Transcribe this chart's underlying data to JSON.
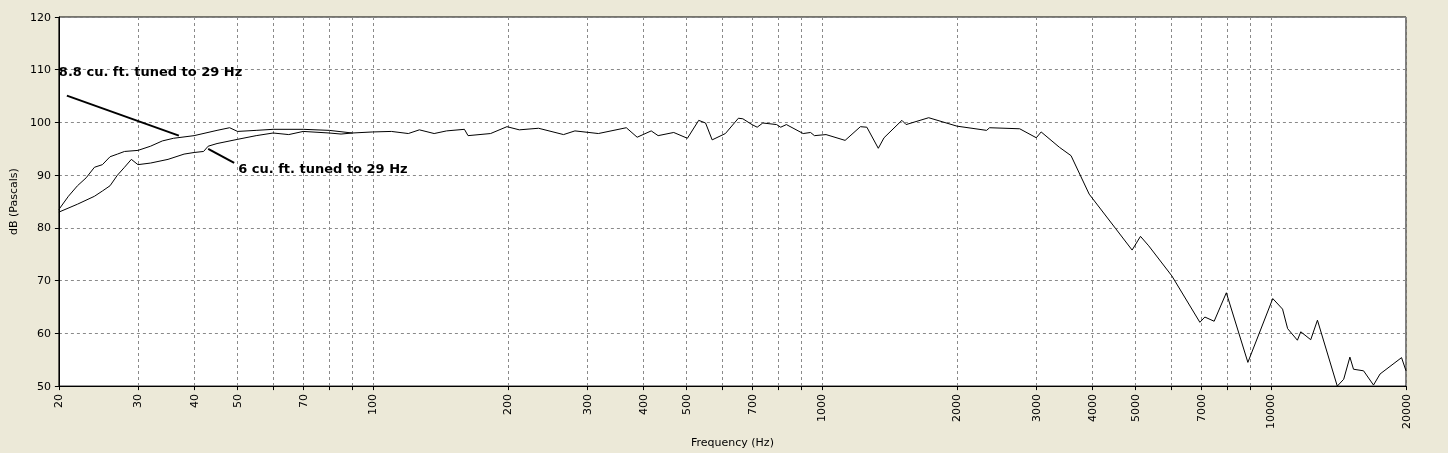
{
  "chart_data": {
    "type": "line",
    "xlabel": "Frequency (Hz)",
    "ylabel": "dB (Pascals)",
    "log": "x",
    "xlim": [
      20,
      20000
    ],
    "ylim": [
      50,
      120
    ],
    "xticks": [
      20,
      30,
      40,
      50,
      {
        "value": 60,
        "label": null
      },
      70,
      {
        "value": 80,
        "label": null
      },
      {
        "value": 90,
        "label": null
      },
      100,
      200,
      300,
      400,
      500,
      {
        "value": 600,
        "label": null
      },
      700,
      {
        "value": 800,
        "label": null
      },
      {
        "value": 900,
        "label": null
      },
      1000,
      2000,
      3000,
      4000,
      5000,
      {
        "value": 6000,
        "label": null
      },
      7000,
      {
        "value": 8000,
        "label": null
      },
      {
        "value": 9000,
        "label": null
      },
      10000,
      20000
    ],
    "yticks": [
      50,
      60,
      70,
      80,
      90,
      100,
      110,
      120
    ],
    "grid": true,
    "line_style": "solid",
    "marker": "none",
    "annotations": [
      {
        "text": "8.8 cu. ft. tuned to 29 Hz",
        "x": 37,
        "y": 97.5
      },
      {
        "text": "6 cu. ft. tuned to 29 Hz",
        "x": 43,
        "y": 95
      }
    ],
    "series": [
      {
        "color": "#000000",
        "x": [
          20,
          21,
          22,
          23,
          24,
          25,
          26,
          27,
          28,
          30,
          32,
          34,
          36,
          40,
          45,
          48,
          50,
          55,
          60,
          70,
          80,
          90,
          100,
          110,
          120,
          127,
          137,
          146,
          160,
          163,
          183,
          199,
          212,
          234,
          266,
          282,
          318,
          367,
          388,
          417,
          432,
          468,
          502,
          532,
          551,
          570,
          610,
          652,
          667,
          699,
          718,
          739,
          793,
          810,
          834,
          909,
          944,
          963,
          1022,
          1127,
          1219,
          1260,
          1336,
          1376,
          1508,
          1541,
          1730,
          2000,
          2328,
          2364,
          2759,
          3004,
          3080,
          3381,
          3590,
          3940,
          4510,
          4910,
          5125,
          5347,
          6020,
          6950,
          7130,
          7478,
          7960,
          8890,
          10100,
          10620,
          10900,
          11460,
          11660,
          12270,
          12700,
          14060,
          14530,
          15000,
          15280,
          16090,
          16930,
          17510,
          19550,
          20000
        ],
        "values": [
          83.5,
          86,
          88,
          89.5,
          91.5,
          92,
          93.5,
          94,
          94.5,
          94.7,
          95.5,
          96.5,
          97,
          97.5,
          98.5,
          99,
          98.3,
          98.5,
          98.7,
          98.7,
          98.5,
          98,
          98.2,
          98.3,
          97.9,
          98.6,
          97.9,
          98.4,
          98.7,
          97.5,
          97.9,
          99.2,
          98.6,
          98.9,
          97.7,
          98.4,
          97.9,
          99,
          97.2,
          98.4,
          97.5,
          98.1,
          97,
          100.4,
          99.9,
          96.7,
          97.9,
          100.8,
          100.7,
          99.6,
          99.1,
          99.9,
          99.6,
          99.1,
          99.6,
          97.9,
          98.1,
          97.5,
          97.7,
          96.6,
          99.2,
          99.1,
          95.1,
          97.1,
          100.4,
          99.6,
          100.9,
          99.3,
          98.5,
          99,
          98.8,
          97.1,
          98.2,
          95.3,
          93.7,
          86.4,
          79.9,
          75.8,
          78.4,
          76.6,
          70.9,
          62.1,
          63.1,
          62.3,
          67.7,
          54.5,
          66.6,
          64.6,
          60.9,
          58.7,
          60.3,
          58.8,
          62.5,
          50,
          51.3,
          55.5,
          53.2,
          52.9,
          50.2,
          52.3,
          55.4,
          52.9
        ]
      },
      {
        "color": "#000000",
        "x": [
          20,
          22,
          24,
          25,
          26,
          27,
          28,
          29,
          30,
          32,
          35,
          38,
          40,
          42,
          43,
          45,
          50,
          55,
          60,
          65,
          70,
          80,
          85,
          90
        ],
        "values": [
          83,
          84.5,
          86,
          87,
          88,
          90,
          91.5,
          93,
          92,
          92.3,
          93,
          94,
          94.3,
          94.5,
          95.5,
          96,
          96.8,
          97.5,
          98,
          97.7,
          98.3,
          98,
          97.8,
          98
        ]
      }
    ]
  }
}
